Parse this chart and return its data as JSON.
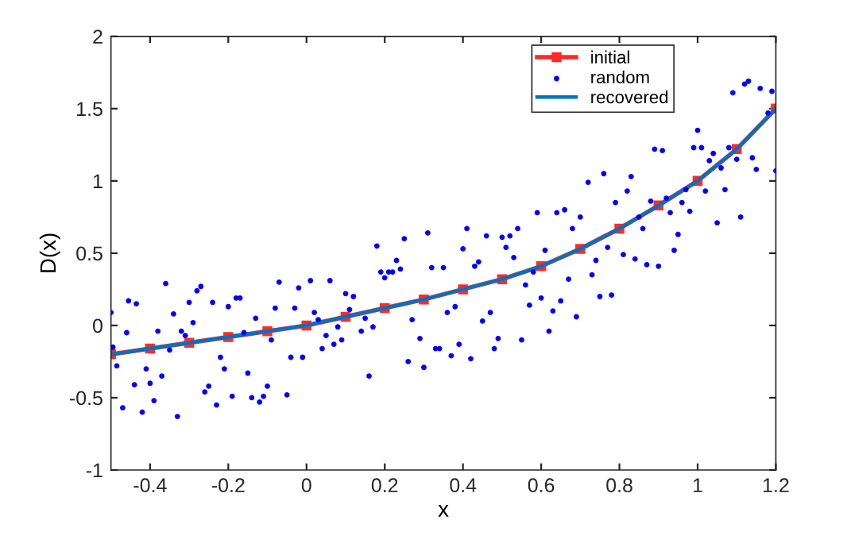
{
  "chart_data": {
    "type": "line",
    "xlabel": "x",
    "ylabel": "D(x)",
    "xlim": [
      -0.5,
      1.2
    ],
    "ylim": [
      -1,
      2
    ],
    "xticks": [
      {
        "value": -0.4,
        "label": "-0.4"
      },
      {
        "value": -0.2,
        "label": "-0.2"
      },
      0,
      0.2,
      0.4,
      0.6,
      0.8,
      1,
      1.2
    ],
    "yticks": [
      {
        "value": -1,
        "label": "-1"
      },
      {
        "value": -0.5,
        "label": "-0.5"
      },
      0,
      0.5,
      1,
      1.5,
      2
    ],
    "grid": false,
    "legend": "top right",
    "series": [
      {
        "name": "initial",
        "color": "#ff2a2a",
        "marker": "square",
        "line_style": "solid",
        "x": [
          -0.5,
          -0.4,
          -0.3,
          -0.2,
          -0.1,
          0,
          0.1,
          0.2,
          0.3,
          0.4,
          0.5,
          0.6,
          0.7,
          0.8,
          0.9,
          1.0,
          1.1,
          1.2
        ],
        "values": [
          -0.2,
          -0.16,
          -0.12,
          -0.08,
          -0.04,
          0,
          0.06,
          0.12,
          0.18,
          0.25,
          0.32,
          0.41,
          0.53,
          0.67,
          0.83,
          1.0,
          1.22,
          1.5
        ]
      },
      {
        "name": "random",
        "type": "scatter",
        "color": "#0000ff",
        "marker": "circle",
        "x": [
          -0.5,
          -0.495,
          -0.485,
          -0.47,
          -0.46,
          -0.455,
          -0.44,
          -0.435,
          -0.42,
          -0.41,
          -0.4,
          -0.39,
          -0.38,
          -0.37,
          -0.36,
          -0.35,
          -0.34,
          -0.33,
          -0.32,
          -0.31,
          -0.3,
          -0.29,
          -0.28,
          -0.27,
          -0.26,
          -0.25,
          -0.24,
          -0.23,
          -0.22,
          -0.21,
          -0.2,
          -0.19,
          -0.18,
          -0.17,
          -0.16,
          -0.15,
          -0.14,
          -0.13,
          -0.12,
          -0.11,
          -0.1,
          -0.09,
          -0.08,
          -0.07,
          -0.05,
          -0.04,
          -0.03,
          -0.02,
          -0.01,
          0.01,
          0.02,
          0.03,
          0.04,
          0.05,
          0.06,
          0.07,
          0.08,
          0.09,
          0.1,
          0.11,
          0.12,
          0.14,
          0.15,
          0.16,
          0.17,
          0.18,
          0.19,
          0.2,
          0.21,
          0.22,
          0.23,
          0.24,
          0.25,
          0.26,
          0.27,
          0.29,
          0.3,
          0.31,
          0.32,
          0.33,
          0.34,
          0.35,
          0.36,
          0.37,
          0.38,
          0.39,
          0.4,
          0.41,
          0.42,
          0.43,
          0.44,
          0.45,
          0.46,
          0.47,
          0.48,
          0.49,
          0.5,
          0.51,
          0.52,
          0.53,
          0.54,
          0.55,
          0.56,
          0.57,
          0.58,
          0.59,
          0.6,
          0.61,
          0.62,
          0.63,
          0.64,
          0.65,
          0.66,
          0.67,
          0.68,
          0.69,
          0.7,
          0.72,
          0.73,
          0.74,
          0.75,
          0.76,
          0.77,
          0.78,
          0.79,
          0.81,
          0.82,
          0.83,
          0.84,
          0.85,
          0.86,
          0.87,
          0.88,
          0.89,
          0.9,
          0.91,
          0.92,
          0.93,
          0.94,
          0.95,
          0.96,
          0.97,
          0.98,
          0.99,
          1.0,
          1.01,
          1.02,
          1.03,
          1.04,
          1.05,
          1.06,
          1.07,
          1.08,
          1.09,
          1.1,
          1.11,
          1.12,
          1.13,
          1.14,
          1.15,
          1.16,
          1.18,
          1.19,
          1.2
        ],
        "values": [
          0.09,
          -0.15,
          -0.28,
          -0.57,
          -0.05,
          0.17,
          -0.41,
          0.15,
          -0.6,
          -0.3,
          -0.4,
          -0.52,
          -0.04,
          -0.35,
          0.29,
          -0.17,
          0.08,
          -0.63,
          -0.04,
          -0.07,
          0.16,
          0.02,
          0.24,
          0.27,
          -0.46,
          -0.42,
          0.16,
          -0.55,
          -0.22,
          -0.3,
          0.13,
          -0.49,
          0.19,
          0.19,
          -0.05,
          -0.33,
          -0.5,
          0.05,
          -0.53,
          -0.49,
          -0.42,
          -0.1,
          0.12,
          0.3,
          -0.48,
          -0.22,
          0.12,
          0.26,
          -0.22,
          0.31,
          0.09,
          0.04,
          -0.16,
          -0.07,
          0.31,
          -0.13,
          -0.01,
          -0.1,
          0.22,
          0.11,
          0.2,
          -0.04,
          0.05,
          -0.35,
          -0.01,
          0.55,
          0.37,
          0.33,
          0.37,
          0.37,
          0.45,
          0.39,
          0.6,
          -0.25,
          0.04,
          -0.09,
          -0.29,
          0.64,
          0.4,
          -0.16,
          -0.16,
          0.4,
          0.09,
          -0.21,
          0.13,
          -0.13,
          0.53,
          0.67,
          -0.23,
          0.41,
          0.44,
          0.03,
          0.62,
          0.09,
          -0.16,
          -0.09,
          0.61,
          0.54,
          0.62,
          0.47,
          0.67,
          -0.1,
          0.28,
          0.14,
          0.37,
          0.78,
          0.19,
          0.52,
          -0.04,
          0.1,
          0.78,
          0.17,
          0.8,
          0.32,
          0.67,
          0.06,
          0.75,
          0.99,
          0.35,
          0.45,
          0.2,
          1.05,
          0.54,
          0.21,
          0.85,
          0.49,
          0.93,
          1.03,
          0.46,
          0.75,
          0.67,
          0.42,
          0.86,
          1.22,
          0.41,
          1.21,
          0.88,
          0.78,
          0.52,
          0.63,
          0.85,
          0.94,
          0.79,
          1.23,
          1.35,
          1.23,
          0.93,
          1.14,
          1.19,
          0.71,
          1.09,
          0.94,
          1.23,
          1.61,
          1.15,
          0.75,
          1.67,
          1.69,
          1.16,
          1.08,
          1.64,
          1.47,
          1.62,
          1.07
        ]
      },
      {
        "name": "recovered",
        "color": "#0072bd",
        "marker": "none",
        "line_style": "solid",
        "x": [
          -0.5,
          -0.4,
          -0.3,
          -0.2,
          -0.1,
          0,
          0.1,
          0.2,
          0.3,
          0.4,
          0.5,
          0.6,
          0.7,
          0.8,
          0.9,
          1.0,
          1.1,
          1.2
        ],
        "values": [
          -0.2,
          -0.16,
          -0.12,
          -0.08,
          -0.04,
          0,
          0.06,
          0.12,
          0.18,
          0.25,
          0.32,
          0.41,
          0.53,
          0.67,
          0.83,
          1.0,
          1.22,
          1.5
        ]
      }
    ]
  }
}
